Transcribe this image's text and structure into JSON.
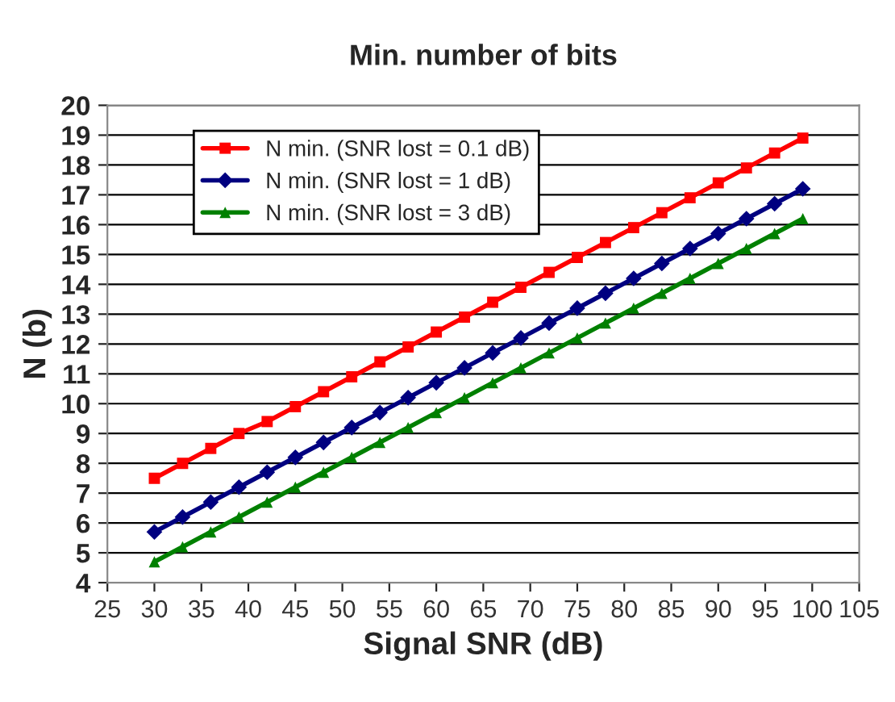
{
  "chart_data": {
    "type": "line",
    "title": "Min. number of bits",
    "xlabel": "Signal SNR (dB)",
    "ylabel": "N (b)",
    "x": [
      30,
      33,
      36,
      39,
      42,
      45,
      48,
      51,
      54,
      57,
      60,
      63,
      66,
      69,
      72,
      75,
      78,
      81,
      84,
      87,
      90,
      93,
      96,
      99
    ],
    "series": [
      {
        "name": "N min. (SNR lost = 0.1 dB)",
        "color": "#ff0000",
        "marker": "square",
        "values": [
          7.5,
          8.0,
          8.5,
          9.0,
          9.4,
          9.9,
          10.4,
          10.9,
          11.4,
          11.9,
          12.4,
          12.9,
          13.4,
          13.9,
          14.4,
          14.9,
          15.4,
          15.9,
          16.4,
          16.9,
          17.4,
          17.9,
          18.4,
          18.9
        ]
      },
      {
        "name": "N min. (SNR lost = 1 dB)",
        "color": "#000080",
        "marker": "diamond",
        "values": [
          5.7,
          6.2,
          6.7,
          7.2,
          7.7,
          8.2,
          8.7,
          9.2,
          9.7,
          10.2,
          10.7,
          11.2,
          11.7,
          12.2,
          12.7,
          13.2,
          13.7,
          14.2,
          14.7,
          15.2,
          15.7,
          16.2,
          16.7,
          17.2
        ]
      },
      {
        "name": "N min. (SNR lost = 3 dB)",
        "color": "#008000",
        "marker": "triangle",
        "values": [
          4.7,
          5.2,
          5.7,
          6.2,
          6.7,
          7.2,
          7.7,
          8.2,
          8.7,
          9.2,
          9.7,
          10.2,
          10.7,
          11.2,
          11.7,
          12.2,
          12.7,
          13.2,
          13.7,
          14.2,
          14.7,
          15.2,
          15.7,
          16.2
        ]
      }
    ],
    "xlim": [
      25,
      105
    ],
    "xticks": [
      25,
      30,
      35,
      40,
      45,
      50,
      55,
      60,
      65,
      70,
      75,
      80,
      85,
      90,
      95,
      100,
      105
    ],
    "ylim": [
      4,
      20
    ],
    "yticks": [
      4,
      5,
      6,
      7,
      8,
      9,
      10,
      11,
      12,
      13,
      14,
      15,
      16,
      17,
      18,
      19,
      20
    ],
    "grid": "y",
    "legend": "top left"
  }
}
